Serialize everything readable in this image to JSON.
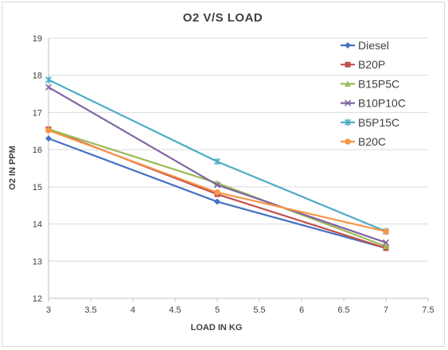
{
  "chart_data": {
    "type": "line",
    "title": "O2 V/S LOAD",
    "xlabel": "LOAD IN KG",
    "ylabel": "O2 IN PPM",
    "xlim": [
      3,
      7.5
    ],
    "ylim": [
      12,
      19
    ],
    "x_ticks": [
      "3",
      "3.5",
      "4",
      "4.5",
      "5",
      "5.5",
      "6",
      "6.5",
      "7",
      "7.5"
    ],
    "y_ticks": [
      "12",
      "13",
      "14",
      "15",
      "16",
      "17",
      "18",
      "19"
    ],
    "grid": "horizontal",
    "legend_position": "right",
    "x": [
      3,
      5,
      7
    ],
    "series": [
      {
        "name": "Diesel",
        "values": [
          16.3,
          14.6,
          13.35
        ],
        "color": "#4472c4",
        "marker": "diamond"
      },
      {
        "name": "B20P",
        "values": [
          16.55,
          14.8,
          13.35
        ],
        "color": "#c0504d",
        "marker": "square"
      },
      {
        "name": "B15P5C",
        "values": [
          16.55,
          15.1,
          13.4
        ],
        "color": "#9bbb59",
        "marker": "triangle"
      },
      {
        "name": "B10P10C",
        "values": [
          17.68,
          15.05,
          13.5
        ],
        "color": "#8064a2",
        "marker": "x"
      },
      {
        "name": "B5P15C",
        "values": [
          17.88,
          15.68,
          13.8
        ],
        "color": "#4bacc6",
        "marker": "star"
      },
      {
        "name": "B20C",
        "values": [
          16.52,
          14.85,
          13.8
        ],
        "color": "#f79646",
        "marker": "circle"
      }
    ]
  }
}
